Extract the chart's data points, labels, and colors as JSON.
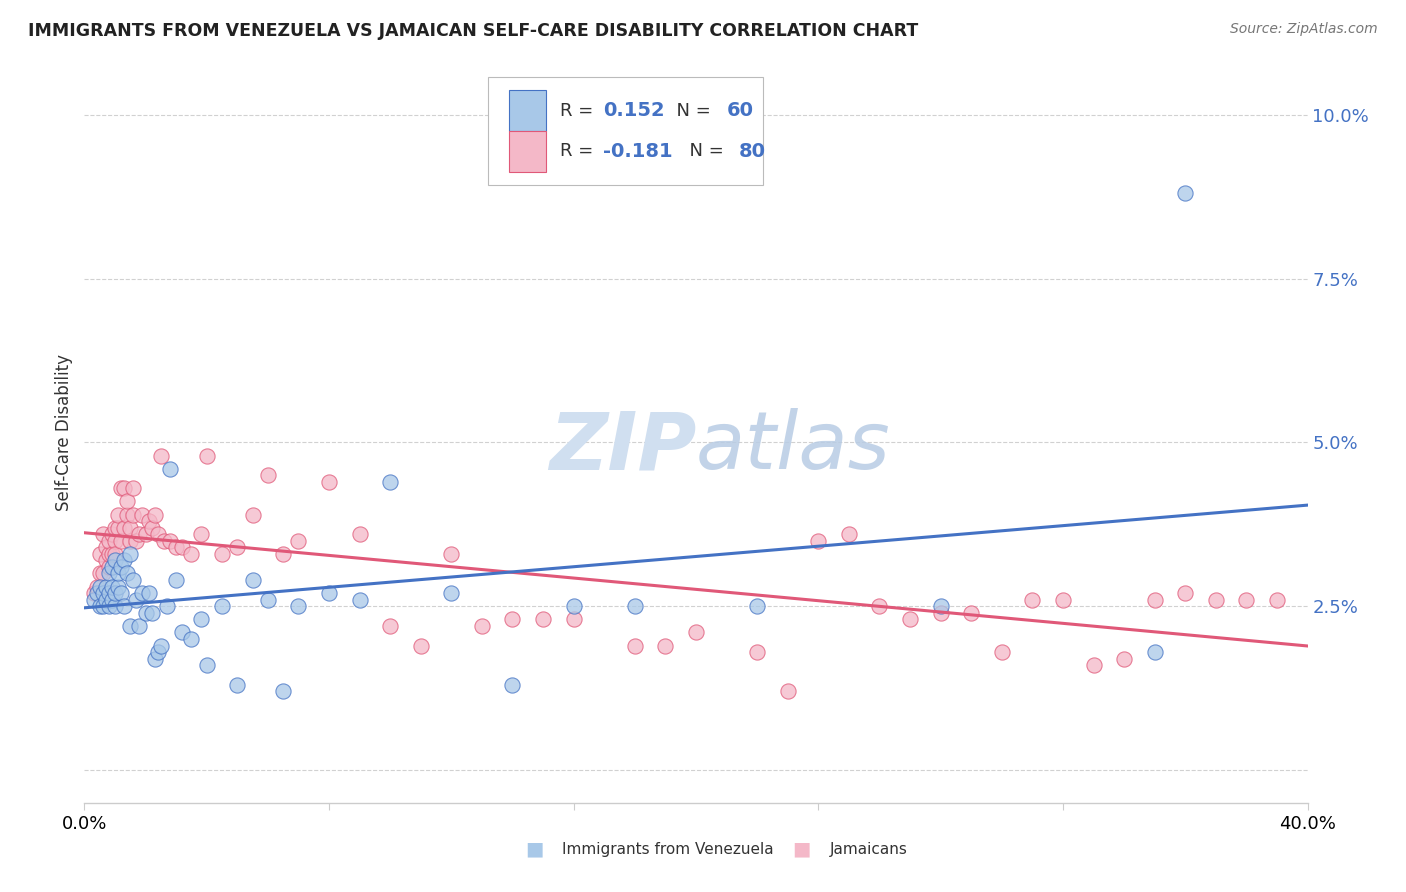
{
  "title": "IMMIGRANTS FROM VENEZUELA VS JAMAICAN SELF-CARE DISABILITY CORRELATION CHART",
  "source": "Source: ZipAtlas.com",
  "ylabel": "Self-Care Disability",
  "yticks": [
    0.0,
    0.025,
    0.05,
    0.075,
    0.1
  ],
  "ytick_labels": [
    "",
    "2.5%",
    "5.0%",
    "7.5%",
    "10.0%"
  ],
  "xlim": [
    0.0,
    0.4
  ],
  "ylim": [
    -0.005,
    0.108
  ],
  "legend_label1": "Immigrants from Venezuela",
  "legend_label2": "Jamaicans",
  "R1": 0.152,
  "N1": 60,
  "R2": -0.181,
  "N2": 80,
  "color_blue": "#a8c8e8",
  "color_pink": "#f4b8c8",
  "line_blue": "#4472c4",
  "line_pink": "#e05878",
  "trend_blue": "#4472c4",
  "trend_pink": "#e05878",
  "watermark_color": "#d0dff0",
  "background_color": "#ffffff",
  "blue_scatter_x": [
    0.003,
    0.004,
    0.005,
    0.005,
    0.006,
    0.006,
    0.007,
    0.007,
    0.008,
    0.008,
    0.008,
    0.009,
    0.009,
    0.009,
    0.01,
    0.01,
    0.01,
    0.011,
    0.011,
    0.012,
    0.012,
    0.013,
    0.013,
    0.014,
    0.015,
    0.015,
    0.016,
    0.017,
    0.018,
    0.019,
    0.02,
    0.021,
    0.022,
    0.023,
    0.024,
    0.025,
    0.027,
    0.028,
    0.03,
    0.032,
    0.035,
    0.038,
    0.04,
    0.045,
    0.05,
    0.055,
    0.06,
    0.065,
    0.07,
    0.08,
    0.09,
    0.1,
    0.12,
    0.14,
    0.16,
    0.18,
    0.22,
    0.28,
    0.35,
    0.36
  ],
  "blue_scatter_y": [
    0.026,
    0.027,
    0.025,
    0.028,
    0.025,
    0.027,
    0.026,
    0.028,
    0.025,
    0.027,
    0.03,
    0.026,
    0.028,
    0.031,
    0.025,
    0.027,
    0.032,
    0.028,
    0.03,
    0.027,
    0.031,
    0.032,
    0.025,
    0.03,
    0.033,
    0.022,
    0.029,
    0.026,
    0.022,
    0.027,
    0.024,
    0.027,
    0.024,
    0.017,
    0.018,
    0.019,
    0.025,
    0.046,
    0.029,
    0.021,
    0.02,
    0.023,
    0.016,
    0.025,
    0.013,
    0.029,
    0.026,
    0.012,
    0.025,
    0.027,
    0.026,
    0.044,
    0.027,
    0.013,
    0.025,
    0.025,
    0.025,
    0.025,
    0.018,
    0.088
  ],
  "pink_scatter_x": [
    0.003,
    0.004,
    0.005,
    0.005,
    0.006,
    0.006,
    0.007,
    0.007,
    0.008,
    0.008,
    0.008,
    0.009,
    0.009,
    0.01,
    0.01,
    0.01,
    0.011,
    0.011,
    0.012,
    0.012,
    0.013,
    0.013,
    0.014,
    0.014,
    0.015,
    0.015,
    0.016,
    0.016,
    0.017,
    0.018,
    0.019,
    0.02,
    0.021,
    0.022,
    0.023,
    0.024,
    0.025,
    0.026,
    0.028,
    0.03,
    0.032,
    0.035,
    0.038,
    0.04,
    0.045,
    0.05,
    0.055,
    0.06,
    0.065,
    0.07,
    0.08,
    0.09,
    0.1,
    0.12,
    0.15,
    0.18,
    0.22,
    0.25,
    0.28,
    0.3,
    0.32,
    0.34,
    0.35,
    0.36,
    0.37,
    0.38,
    0.39,
    0.2,
    0.24,
    0.26,
    0.29,
    0.31,
    0.33,
    0.16,
    0.14,
    0.13,
    0.11,
    0.19,
    0.27,
    0.23
  ],
  "pink_scatter_y": [
    0.027,
    0.028,
    0.03,
    0.033,
    0.03,
    0.036,
    0.032,
    0.034,
    0.031,
    0.033,
    0.035,
    0.033,
    0.036,
    0.035,
    0.037,
    0.033,
    0.037,
    0.039,
    0.035,
    0.043,
    0.037,
    0.043,
    0.039,
    0.041,
    0.035,
    0.037,
    0.039,
    0.043,
    0.035,
    0.036,
    0.039,
    0.036,
    0.038,
    0.037,
    0.039,
    0.036,
    0.048,
    0.035,
    0.035,
    0.034,
    0.034,
    0.033,
    0.036,
    0.048,
    0.033,
    0.034,
    0.039,
    0.045,
    0.033,
    0.035,
    0.044,
    0.036,
    0.022,
    0.033,
    0.023,
    0.019,
    0.018,
    0.036,
    0.024,
    0.018,
    0.026,
    0.017,
    0.026,
    0.027,
    0.026,
    0.026,
    0.026,
    0.021,
    0.035,
    0.025,
    0.024,
    0.026,
    0.016,
    0.023,
    0.023,
    0.022,
    0.019,
    0.019,
    0.023,
    0.012
  ]
}
